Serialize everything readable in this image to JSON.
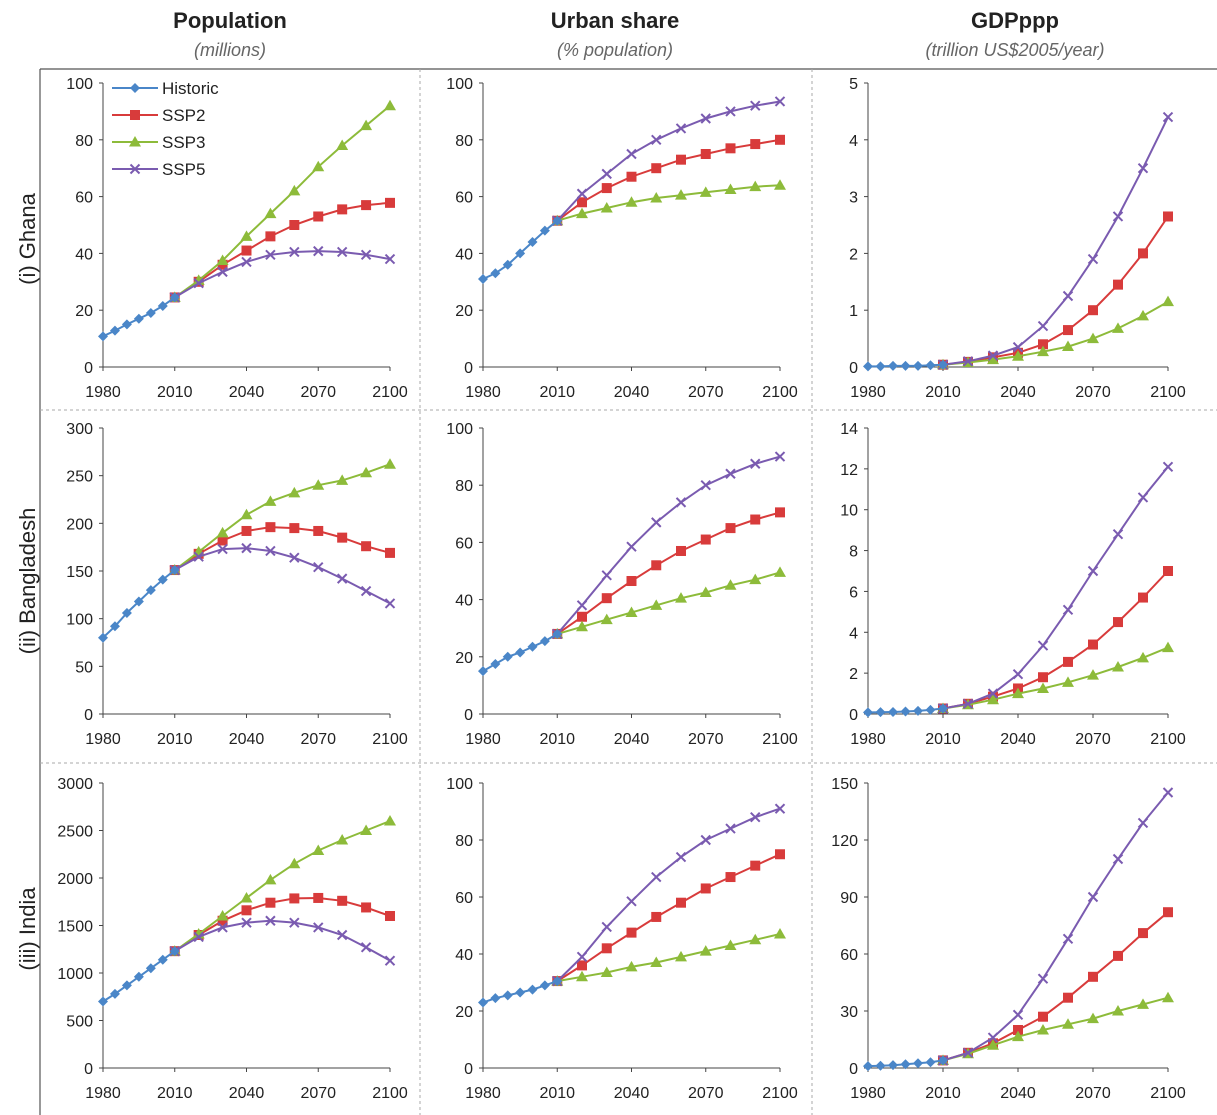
{
  "colors": {
    "Historic": "#4a86c8",
    "SSP2": "#d83b3b",
    "SSP3": "#8dbb3a",
    "SSP5": "#7a5bb0"
  },
  "columns": [
    {
      "title": "Population",
      "subtitle": "(millions)"
    },
    {
      "title": "Urban share",
      "subtitle": "(% population)"
    },
    {
      "title": "GDPppp",
      "subtitle": "(trillion US$2005/year)"
    }
  ],
  "rows": [
    {
      "label": "(i) Ghana"
    },
    {
      "label": "(ii) Bangladesh"
    },
    {
      "label": "(iii) India"
    }
  ],
  "legend": [
    "Historic",
    "SSP2",
    "SSP3",
    "SSP5"
  ],
  "chart_data": [
    {
      "type": "line",
      "panel": "Ghana – Population",
      "xlim": [
        1980,
        2100
      ],
      "ylim": [
        0,
        100
      ],
      "xticks": [
        1980,
        2010,
        2040,
        2070,
        2100
      ],
      "yticks": [
        0,
        20,
        40,
        60,
        80,
        100
      ],
      "series": [
        {
          "name": "Historic",
          "x": [
            1980,
            1985,
            1990,
            1995,
            2000,
            2005,
            2010
          ],
          "y": [
            10.8,
            12.8,
            15.0,
            17.0,
            19.0,
            21.5,
            24.5
          ]
        },
        {
          "name": "SSP2",
          "x": [
            2010,
            2020,
            2030,
            2040,
            2050,
            2060,
            2070,
            2080,
            2090,
            2100
          ],
          "y": [
            24.5,
            30,
            36,
            41,
            46,
            50,
            53,
            55.5,
            57,
            57.8
          ]
        },
        {
          "name": "SSP3",
          "x": [
            2010,
            2020,
            2030,
            2040,
            2050,
            2060,
            2070,
            2080,
            2090,
            2100
          ],
          "y": [
            24.5,
            30.5,
            37.5,
            46,
            54,
            62,
            70.5,
            78,
            85,
            92
          ]
        },
        {
          "name": "SSP5",
          "x": [
            2010,
            2020,
            2030,
            2040,
            2050,
            2060,
            2070,
            2080,
            2090,
            2100
          ],
          "y": [
            24.5,
            29.5,
            33.5,
            37,
            39.5,
            40.5,
            40.8,
            40.5,
            39.5,
            38
          ]
        }
      ]
    },
    {
      "type": "line",
      "panel": "Ghana – Urban share",
      "xlim": [
        1980,
        2100
      ],
      "ylim": [
        0,
        100
      ],
      "xticks": [
        1980,
        2010,
        2040,
        2070,
        2100
      ],
      "yticks": [
        0,
        20,
        40,
        60,
        80,
        100
      ],
      "series": [
        {
          "name": "Historic",
          "x": [
            1980,
            1985,
            1990,
            1995,
            2000,
            2005,
            2010
          ],
          "y": [
            31,
            33,
            36,
            40,
            44,
            48,
            51.5
          ]
        },
        {
          "name": "SSP2",
          "x": [
            2010,
            2020,
            2030,
            2040,
            2050,
            2060,
            2070,
            2080,
            2090,
            2100
          ],
          "y": [
            51.5,
            58,
            63,
            67,
            70,
            73,
            75,
            77,
            78.5,
            80
          ]
        },
        {
          "name": "SSP3",
          "x": [
            2010,
            2020,
            2030,
            2040,
            2050,
            2060,
            2070,
            2080,
            2090,
            2100
          ],
          "y": [
            51.5,
            54,
            56,
            58,
            59.5,
            60.5,
            61.5,
            62.5,
            63.5,
            64
          ]
        },
        {
          "name": "SSP5",
          "x": [
            2010,
            2020,
            2030,
            2040,
            2050,
            2060,
            2070,
            2080,
            2090,
            2100
          ],
          "y": [
            51.5,
            61,
            68,
            75,
            80,
            84,
            87.5,
            90,
            92,
            93.5
          ]
        }
      ]
    },
    {
      "type": "line",
      "panel": "Ghana – GDPppp",
      "xlim": [
        1980,
        2100
      ],
      "ylim": [
        0,
        5
      ],
      "xticks": [
        1980,
        2010,
        2040,
        2070,
        2100
      ],
      "yticks": [
        0,
        1,
        2,
        3,
        4,
        5
      ],
      "series": [
        {
          "name": "Historic",
          "x": [
            1980,
            1985,
            1990,
            1995,
            2000,
            2005,
            2010
          ],
          "y": [
            0.01,
            0.01,
            0.02,
            0.02,
            0.02,
            0.03,
            0.04
          ]
        },
        {
          "name": "SSP2",
          "x": [
            2010,
            2020,
            2030,
            2040,
            2050,
            2060,
            2070,
            2080,
            2090,
            2100
          ],
          "y": [
            0.04,
            0.09,
            0.17,
            0.25,
            0.4,
            0.65,
            1.0,
            1.45,
            2.0,
            2.65
          ]
        },
        {
          "name": "SSP3",
          "x": [
            2010,
            2020,
            2030,
            2040,
            2050,
            2060,
            2070,
            2080,
            2090,
            2100
          ],
          "y": [
            0.04,
            0.08,
            0.13,
            0.19,
            0.27,
            0.36,
            0.5,
            0.68,
            0.9,
            1.15
          ]
        },
        {
          "name": "SSP5",
          "x": [
            2010,
            2020,
            2030,
            2040,
            2050,
            2060,
            2070,
            2080,
            2090,
            2100
          ],
          "y": [
            0.04,
            0.1,
            0.2,
            0.35,
            0.72,
            1.25,
            1.9,
            2.65,
            3.5,
            4.4
          ]
        }
      ]
    },
    {
      "type": "line",
      "panel": "Bangladesh – Population",
      "xlim": [
        1980,
        2100
      ],
      "ylim": [
        0,
        300
      ],
      "xticks": [
        1980,
        2010,
        2040,
        2070,
        2100
      ],
      "yticks": [
        0,
        50,
        100,
        150,
        200,
        250,
        300
      ],
      "series": [
        {
          "name": "Historic",
          "x": [
            1980,
            1985,
            1990,
            1995,
            2000,
            2005,
            2010
          ],
          "y": [
            80,
            92,
            106,
            118,
            130,
            141,
            151
          ]
        },
        {
          "name": "SSP2",
          "x": [
            2010,
            2020,
            2030,
            2040,
            2050,
            2060,
            2070,
            2080,
            2090,
            2100
          ],
          "y": [
            151,
            168,
            182,
            192,
            196,
            195,
            192,
            185,
            176,
            169
          ]
        },
        {
          "name": "SSP3",
          "x": [
            2010,
            2020,
            2030,
            2040,
            2050,
            2060,
            2070,
            2080,
            2090,
            2100
          ],
          "y": [
            151,
            170,
            190,
            209,
            223,
            232,
            240,
            245,
            253,
            262
          ]
        },
        {
          "name": "SSP5",
          "x": [
            2010,
            2020,
            2030,
            2040,
            2050,
            2060,
            2070,
            2080,
            2090,
            2100
          ],
          "y": [
            151,
            165,
            173,
            174,
            171,
            164,
            154,
            142,
            129,
            116
          ]
        }
      ]
    },
    {
      "type": "line",
      "panel": "Bangladesh – Urban share",
      "xlim": [
        1980,
        2100
      ],
      "ylim": [
        0,
        100
      ],
      "xticks": [
        1980,
        2010,
        2040,
        2070,
        2100
      ],
      "yticks": [
        0,
        20,
        40,
        60,
        80,
        100
      ],
      "series": [
        {
          "name": "Historic",
          "x": [
            1980,
            1985,
            1990,
            1995,
            2000,
            2005,
            2010
          ],
          "y": [
            15,
            17.5,
            20,
            21.5,
            23.5,
            25.5,
            28
          ]
        },
        {
          "name": "SSP2",
          "x": [
            2010,
            2020,
            2030,
            2040,
            2050,
            2060,
            2070,
            2080,
            2090,
            2100
          ],
          "y": [
            28,
            34,
            40.5,
            46.5,
            52,
            57,
            61,
            65,
            68,
            70.5
          ]
        },
        {
          "name": "SSP3",
          "x": [
            2010,
            2020,
            2030,
            2040,
            2050,
            2060,
            2070,
            2080,
            2090,
            2100
          ],
          "y": [
            28,
            30.5,
            33,
            35.5,
            38,
            40.5,
            42.5,
            45,
            47,
            49.5
          ]
        },
        {
          "name": "SSP5",
          "x": [
            2010,
            2020,
            2030,
            2040,
            2050,
            2060,
            2070,
            2080,
            2090,
            2100
          ],
          "y": [
            28,
            38,
            48.5,
            58.5,
            67,
            74,
            80,
            84,
            87.5,
            90
          ]
        }
      ]
    },
    {
      "type": "line",
      "panel": "Bangladesh – GDPppp",
      "xlim": [
        1980,
        2100
      ],
      "ylim": [
        0,
        14
      ],
      "xticks": [
        1980,
        2010,
        2040,
        2070,
        2100
      ],
      "yticks": [
        0,
        2,
        4,
        6,
        8,
        10,
        12,
        14
      ],
      "series": [
        {
          "name": "Historic",
          "x": [
            1980,
            1985,
            1990,
            1995,
            2000,
            2005,
            2010
          ],
          "y": [
            0.08,
            0.09,
            0.1,
            0.12,
            0.15,
            0.2,
            0.27
          ]
        },
        {
          "name": "SSP2",
          "x": [
            2010,
            2020,
            2030,
            2040,
            2050,
            2060,
            2070,
            2080,
            2090,
            2100
          ],
          "y": [
            0.27,
            0.5,
            0.85,
            1.25,
            1.8,
            2.55,
            3.4,
            4.5,
            5.7,
            7.0
          ]
        },
        {
          "name": "SSP3",
          "x": [
            2010,
            2020,
            2030,
            2040,
            2050,
            2060,
            2070,
            2080,
            2090,
            2100
          ],
          "y": [
            0.27,
            0.45,
            0.7,
            1.0,
            1.25,
            1.55,
            1.9,
            2.3,
            2.75,
            3.25
          ]
        },
        {
          "name": "SSP5",
          "x": [
            2010,
            2020,
            2030,
            2040,
            2050,
            2060,
            2070,
            2080,
            2090,
            2100
          ],
          "y": [
            0.27,
            0.5,
            1.0,
            1.95,
            3.35,
            5.1,
            7.0,
            8.8,
            10.6,
            12.1
          ]
        }
      ]
    },
    {
      "type": "line",
      "panel": "India – Population",
      "xlim": [
        1980,
        2100
      ],
      "ylim": [
        0,
        3000
      ],
      "xticks": [
        1980,
        2010,
        2040,
        2070,
        2100
      ],
      "yticks": [
        0,
        500,
        1000,
        1500,
        2000,
        2500,
        3000
      ],
      "series": [
        {
          "name": "Historic",
          "x": [
            1980,
            1985,
            1990,
            1995,
            2000,
            2005,
            2010
          ],
          "y": [
            700,
            780,
            870,
            960,
            1050,
            1140,
            1230
          ]
        },
        {
          "name": "SSP2",
          "x": [
            2010,
            2020,
            2030,
            2040,
            2050,
            2060,
            2070,
            2080,
            2090,
            2100
          ],
          "y": [
            1230,
            1400,
            1550,
            1660,
            1740,
            1785,
            1790,
            1760,
            1690,
            1600
          ]
        },
        {
          "name": "SSP3",
          "x": [
            2010,
            2020,
            2030,
            2040,
            2050,
            2060,
            2070,
            2080,
            2090,
            2100
          ],
          "y": [
            1230,
            1410,
            1600,
            1790,
            1980,
            2150,
            2290,
            2400,
            2500,
            2600
          ]
        },
        {
          "name": "SSP5",
          "x": [
            2010,
            2020,
            2030,
            2040,
            2050,
            2060,
            2070,
            2080,
            2090,
            2100
          ],
          "y": [
            1230,
            1380,
            1480,
            1530,
            1550,
            1530,
            1480,
            1400,
            1270,
            1130
          ]
        }
      ]
    },
    {
      "type": "line",
      "panel": "India – Urban share",
      "xlim": [
        1980,
        2100
      ],
      "ylim": [
        0,
        100
      ],
      "xticks": [
        1980,
        2010,
        2040,
        2070,
        2100
      ],
      "yticks": [
        0,
        20,
        40,
        60,
        80,
        100
      ],
      "series": [
        {
          "name": "Historic",
          "x": [
            1980,
            1985,
            1990,
            1995,
            2000,
            2005,
            2010
          ],
          "y": [
            23,
            24.5,
            25.5,
            26.5,
            27.5,
            29,
            30.5
          ]
        },
        {
          "name": "SSP2",
          "x": [
            2010,
            2020,
            2030,
            2040,
            2050,
            2060,
            2070,
            2080,
            2090,
            2100
          ],
          "y": [
            30.5,
            36,
            42,
            47.5,
            53,
            58,
            63,
            67,
            71,
            75
          ]
        },
        {
          "name": "SSP3",
          "x": [
            2010,
            2020,
            2030,
            2040,
            2050,
            2060,
            2070,
            2080,
            2090,
            2100
          ],
          "y": [
            30.5,
            32,
            33.5,
            35.5,
            37,
            39,
            41,
            43,
            45,
            47
          ]
        },
        {
          "name": "SSP5",
          "x": [
            2010,
            2020,
            2030,
            2040,
            2050,
            2060,
            2070,
            2080,
            2090,
            2100
          ],
          "y": [
            30.5,
            39,
            49.5,
            58.5,
            67,
            74,
            80,
            84,
            88,
            91
          ]
        }
      ]
    },
    {
      "type": "line",
      "panel": "India – GDPppp",
      "xlim": [
        1980,
        2100
      ],
      "ylim": [
        0,
        150
      ],
      "xticks": [
        1980,
        2010,
        2040,
        2070,
        2100
      ],
      "yticks": [
        0,
        30,
        60,
        90,
        120,
        150
      ],
      "series": [
        {
          "name": "Historic",
          "x": [
            1980,
            1985,
            1990,
            1995,
            2000,
            2005,
            2010
          ],
          "y": [
            1.0,
            1.2,
            1.5,
            2.0,
            2.5,
            3.0,
            4.0
          ]
        },
        {
          "name": "SSP2",
          "x": [
            2010,
            2020,
            2030,
            2040,
            2050,
            2060,
            2070,
            2080,
            2090,
            2100
          ],
          "y": [
            4,
            8,
            13,
            20,
            27,
            37,
            48,
            59,
            71,
            82
          ]
        },
        {
          "name": "SSP3",
          "x": [
            2010,
            2020,
            2030,
            2040,
            2050,
            2060,
            2070,
            2080,
            2090,
            2100
          ],
          "y": [
            4,
            7.5,
            12,
            16.5,
            20,
            23,
            26,
            30,
            33.5,
            37
          ]
        },
        {
          "name": "SSP5",
          "x": [
            2010,
            2020,
            2030,
            2040,
            2050,
            2060,
            2070,
            2080,
            2090,
            2100
          ],
          "y": [
            4,
            8,
            16,
            28,
            47,
            68,
            90,
            110,
            129,
            145
          ]
        }
      ]
    }
  ]
}
